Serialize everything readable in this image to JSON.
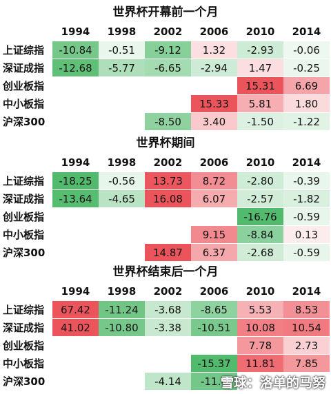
{
  "sections": [
    {
      "title": "世界杯开幕前一个月",
      "columns": [
        "1994",
        "1998",
        "2002",
        "2006",
        "2010",
        "2014"
      ],
      "rows": [
        {
          "label": "上证综指",
          "cells": [
            "-10.84",
            "-0.51",
            "-9.12",
            "1.32",
            "-2.93",
            "-0.06"
          ]
        },
        {
          "label": "深证成指",
          "cells": [
            "-12.68",
            "-5.77",
            "-6.65",
            "-2.94",
            "1.47",
            "-0.25"
          ]
        },
        {
          "label": "创业板指",
          "cells": [
            null,
            null,
            null,
            null,
            "15.31",
            "6.69"
          ]
        },
        {
          "label": "中小板指",
          "cells": [
            null,
            null,
            null,
            "15.33",
            "5.81",
            "1.80"
          ]
        },
        {
          "label": "沪深300",
          "cells": [
            null,
            null,
            "-8.50",
            "3.40",
            "-1.50",
            "-1.22"
          ]
        }
      ]
    },
    {
      "title": "世界杯期间",
      "columns": [
        "1994",
        "1998",
        "2002",
        "2006",
        "2010",
        "2014"
      ],
      "rows": [
        {
          "label": "上证综指",
          "cells": [
            "-18.25",
            "-0.56",
            "13.73",
            "8.72",
            "-2.80",
            "-0.39"
          ]
        },
        {
          "label": "深证成指",
          "cells": [
            "-13.64",
            "-4.65",
            "16.08",
            "6.07",
            "-2.57",
            "-1.82"
          ]
        },
        {
          "label": "创业板指",
          "cells": [
            null,
            null,
            null,
            null,
            "-16.76",
            "-0.59"
          ]
        },
        {
          "label": "中小板指",
          "cells": [
            null,
            null,
            null,
            "9.15",
            "-8.84",
            "0.13"
          ]
        },
        {
          "label": "沪深300",
          "cells": [
            null,
            null,
            "14.87",
            "6.37",
            "-2.68",
            "-0.59"
          ]
        }
      ]
    },
    {
      "title": "世界杯结束后一个月",
      "columns": [
        "1994",
        "1998",
        "2002",
        "2006",
        "2010",
        "2014"
      ],
      "rows": [
        {
          "label": "上证综指",
          "cells": [
            "67.42",
            "-11.24",
            "-3.68",
            "-8.65",
            "5.53",
            "8.53"
          ]
        },
        {
          "label": "深证成指",
          "cells": [
            "41.02",
            "-10.80",
            "-3.38",
            "-10.51",
            "10.08",
            "10.54"
          ]
        },
        {
          "label": "创业板指",
          "cells": [
            null,
            null,
            null,
            null,
            "7.78",
            "2.73"
          ]
        },
        {
          "label": "中小板指",
          "cells": [
            null,
            null,
            null,
            "-15.37",
            "11.81",
            "7.85"
          ]
        },
        {
          "label": "沪深300",
          "cells": [
            null,
            null,
            "-4.14",
            "-11.0",
            null,
            null
          ]
        }
      ]
    }
  ],
  "watermark": "雪球：洛单的马努"
}
